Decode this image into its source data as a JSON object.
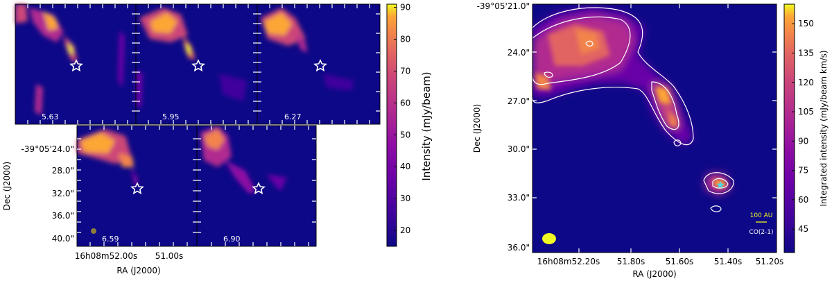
{
  "chart_data": [
    {
      "type": "heatmap",
      "panels": [
        {
          "velocity_label": "5.63"
        },
        {
          "velocity_label": "5.95"
        },
        {
          "velocity_label": "6.27"
        },
        {
          "velocity_label": "6.59"
        },
        {
          "velocity_label": "6.90"
        }
      ],
      "ra_ticks": [
        "16h08m52.00s",
        "51.00s"
      ],
      "dec_ticks": [
        "-39°05'24.0\"",
        "28.0\"",
        "32.0\"",
        "36.0\"",
        "40.0\""
      ],
      "xlabel": "RA (J2000)",
      "ylabel": "Dec (J2000)",
      "colorbar": {
        "label": "Intensity (mJy/beam)",
        "ticks": [
          20,
          30,
          40,
          50,
          60,
          70,
          80,
          90
        ],
        "range": [
          15,
          91
        ],
        "colormap": "plasma"
      }
    },
    {
      "type": "heatmap",
      "ra_ticks": [
        "16h08m52.20s",
        "51.80s",
        "51.60s",
        "51.40s",
        "51.20s"
      ],
      "dec_ticks": [
        "-39°05'21.0\"",
        "24.0\"",
        "27.0\"",
        "30.0\"",
        "33.0\"",
        "36.0\""
      ],
      "xlabel": "RA (J2000)",
      "ylabel": "Dec (J2000)",
      "scale_label": "100 AU",
      "line_label": "CO(2-1)",
      "colorbar": {
        "label": "Integrated intensity (mJy/beam km/s)",
        "ticks": [
          45,
          60,
          75,
          90,
          105,
          120,
          135,
          150
        ],
        "range": [
          33,
          160
        ],
        "colormap": "plasma"
      }
    }
  ]
}
